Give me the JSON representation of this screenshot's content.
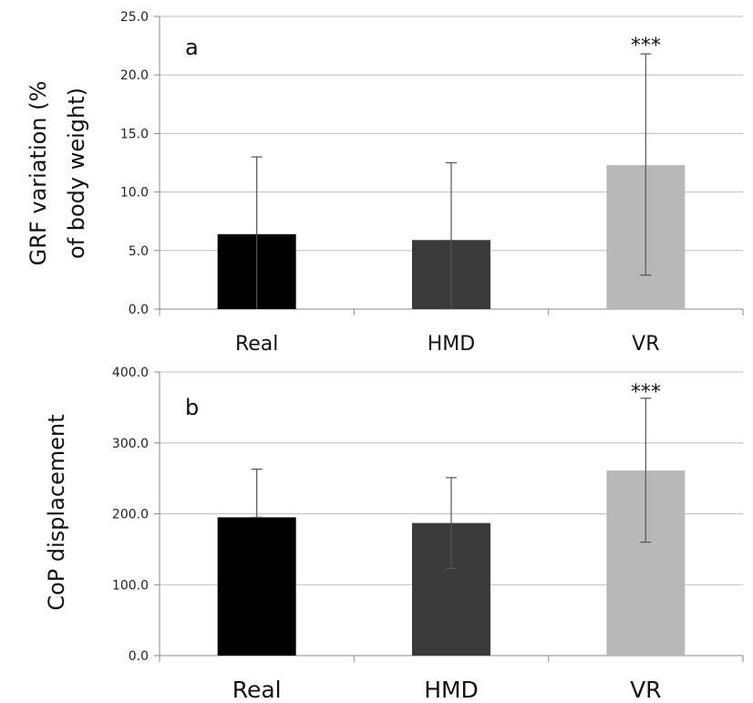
{
  "chart_data": [
    {
      "type": "bar",
      "panel": "a",
      "ylabel_lines": [
        "GRF variation (%",
        "of body weight)"
      ],
      "categories": [
        "Real",
        "HMD",
        "VR"
      ],
      "values": [
        6.4,
        5.9,
        12.3
      ],
      "error_upper": [
        13.0,
        12.5,
        21.8
      ],
      "error_lower": [
        0.0,
        0.0,
        2.9
      ],
      "ylim": [
        0,
        25
      ],
      "yticks": [
        "0.0",
        "5.0",
        "10.0",
        "15.0",
        "20.0",
        "25.0"
      ],
      "ytick_values": [
        0,
        5,
        10,
        15,
        20,
        25
      ],
      "significance": [
        "",
        "",
        "***"
      ],
      "colors": [
        "#000000",
        "#3a3a3a",
        "#b8b8b8"
      ],
      "grid": true
    },
    {
      "type": "bar",
      "panel": "b",
      "ylabel_lines": [
        "CoP displacement"
      ],
      "categories": [
        "Real",
        "HMD",
        "VR"
      ],
      "values": [
        195,
        187,
        261
      ],
      "error_upper": [
        263,
        251,
        363
      ],
      "error_lower": [
        195,
        123,
        160
      ],
      "ylim": [
        0,
        400
      ],
      "yticks": [
        "0.0",
        "100.0",
        "200.0",
        "300.0",
        "400.0"
      ],
      "ytick_values": [
        0,
        100,
        200,
        300,
        400
      ],
      "significance": [
        "",
        "",
        "***"
      ],
      "colors": [
        "#000000",
        "#3a3a3a",
        "#b8b8b8"
      ],
      "grid": true
    }
  ]
}
